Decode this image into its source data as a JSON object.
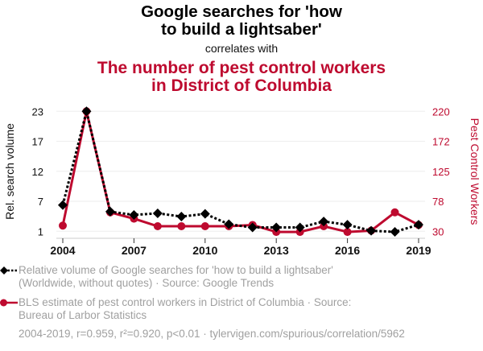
{
  "header": {
    "title_line1": "Google searches for 'how",
    "title_line2": "to build a lightsaber'",
    "subtitle": "correlates with",
    "title2_line1": "The number of pest control workers",
    "title2_line2": "in District of Columbia"
  },
  "colors": {
    "series1": "#000000",
    "series2": "#be0a2f",
    "grid": "#eeeeee",
    "muted_text": "#a0a0a0"
  },
  "chart_data": {
    "type": "line",
    "title": "Google searches for 'how to build a lightsaber' correlates with The number of pest control workers in District of Columbia",
    "x": [
      2004,
      2005,
      2006,
      2007,
      2008,
      2009,
      2010,
      2011,
      2012,
      2013,
      2014,
      2015,
      2016,
      2017,
      2018,
      2019
    ],
    "xlim": [
      2004,
      2019
    ],
    "x_ticks": [
      "2004",
      "2007",
      "2010",
      "2013",
      "2016",
      "2019"
    ],
    "x_tick_values": [
      2004,
      2007,
      2010,
      2013,
      2016,
      2019
    ],
    "ylabel_left": "Rel. search volume",
    "ylabel_right": "Pest Control Workers",
    "ylim_left": [
      1,
      23
    ],
    "ylim_right": [
      30,
      220
    ],
    "y_ticks_left": [
      "1",
      "7",
      "12",
      "17",
      "23"
    ],
    "y_tick_values_left": [
      1,
      6.5,
      12,
      17.5,
      23
    ],
    "y_ticks_right": [
      "30",
      "78",
      "125",
      "172",
      "220"
    ],
    "y_tick_values_right": [
      30,
      77.5,
      125,
      172.5,
      220
    ],
    "grid": true,
    "series": [
      {
        "name": "Relative volume of Google searches for 'how to build a lightsaber' (Worldwide, without quotes) · Source: Google Trends",
        "axis": "left",
        "marker": "diamond",
        "style": "dotted",
        "values": [
          5.8,
          23,
          4.6,
          4.0,
          4.3,
          3.7,
          4.2,
          2.3,
          1.7,
          1.7,
          1.7,
          2.8,
          2.2,
          1.1,
          0.9,
          2.2
        ]
      },
      {
        "name": "BLS estimate of pest control workers in District of Columbia · Source: Bureau of Larbor Statistics",
        "axis": "right",
        "marker": "circle",
        "style": "solid",
        "values": [
          39,
          220,
          60,
          50,
          38,
          38,
          38,
          38,
          40,
          29,
          29,
          38,
          29,
          31,
          60,
          40
        ]
      }
    ]
  },
  "legend": {
    "item1_line1": "Relative volume of Google searches for 'how to build a lightsaber'",
    "item1_line2": "(Worldwide, without quotes) · Source: Google Trends",
    "item2_line1": "BLS estimate of pest control workers in District of Columbia · Source:",
    "item2_line2": "Bureau of Larbor Statistics"
  },
  "footer": {
    "stats": "2004-2019, r=0.959, r²=0.920, p<0.01 · tylervigen.com/spurious/correlation/5962"
  }
}
